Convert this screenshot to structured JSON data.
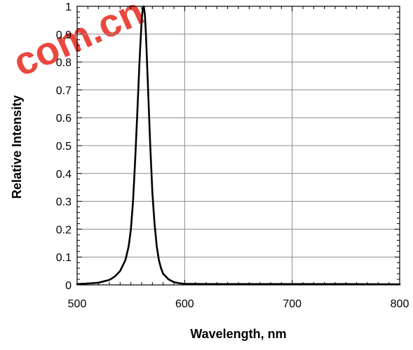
{
  "chart_data": {
    "type": "line",
    "title": "",
    "xlabel": "Wavelength, nm",
    "ylabel": "Relative Intensity",
    "xlim": [
      500,
      800
    ],
    "ylim": [
      0,
      1
    ],
    "xticks": [
      500,
      600,
      700,
      800
    ],
    "yticks": [
      0,
      0.1,
      0.2,
      0.3,
      0.4,
      0.5,
      0.6,
      0.7,
      0.8,
      0.9,
      1
    ],
    "ytick_labels": [
      "0",
      "0.1",
      "0.2",
      "0.3",
      "0.4",
      "0.5",
      "0.6",
      "0.7",
      "0.8",
      "0.9",
      "1"
    ],
    "xtick_labels": [
      "500",
      "600",
      "700",
      "800"
    ],
    "grid": true,
    "legend": "none",
    "series": [
      {
        "x": [
          500,
          510,
          520,
          530,
          535,
          540,
          545,
          548,
          550,
          552,
          554,
          556,
          558,
          560,
          561,
          562,
          563,
          564,
          566,
          568,
          570,
          572,
          574,
          576,
          578,
          580,
          585,
          590,
          595,
          600,
          620,
          650,
          700,
          750,
          800
        ],
        "y": [
          0.003,
          0.005,
          0.008,
          0.018,
          0.03,
          0.05,
          0.09,
          0.14,
          0.2,
          0.3,
          0.45,
          0.62,
          0.8,
          0.95,
          0.99,
          1.0,
          0.97,
          0.9,
          0.7,
          0.5,
          0.33,
          0.22,
          0.14,
          0.09,
          0.06,
          0.04,
          0.02,
          0.01,
          0.006,
          0.004,
          0.003,
          0.003,
          0.003,
          0.003,
          0.002
        ]
      }
    ],
    "colors": {
      "line": "#000000",
      "grid": "#8c8c8c",
      "frame": "#000000"
    }
  },
  "watermark": {
    "text": "com.cn"
  }
}
